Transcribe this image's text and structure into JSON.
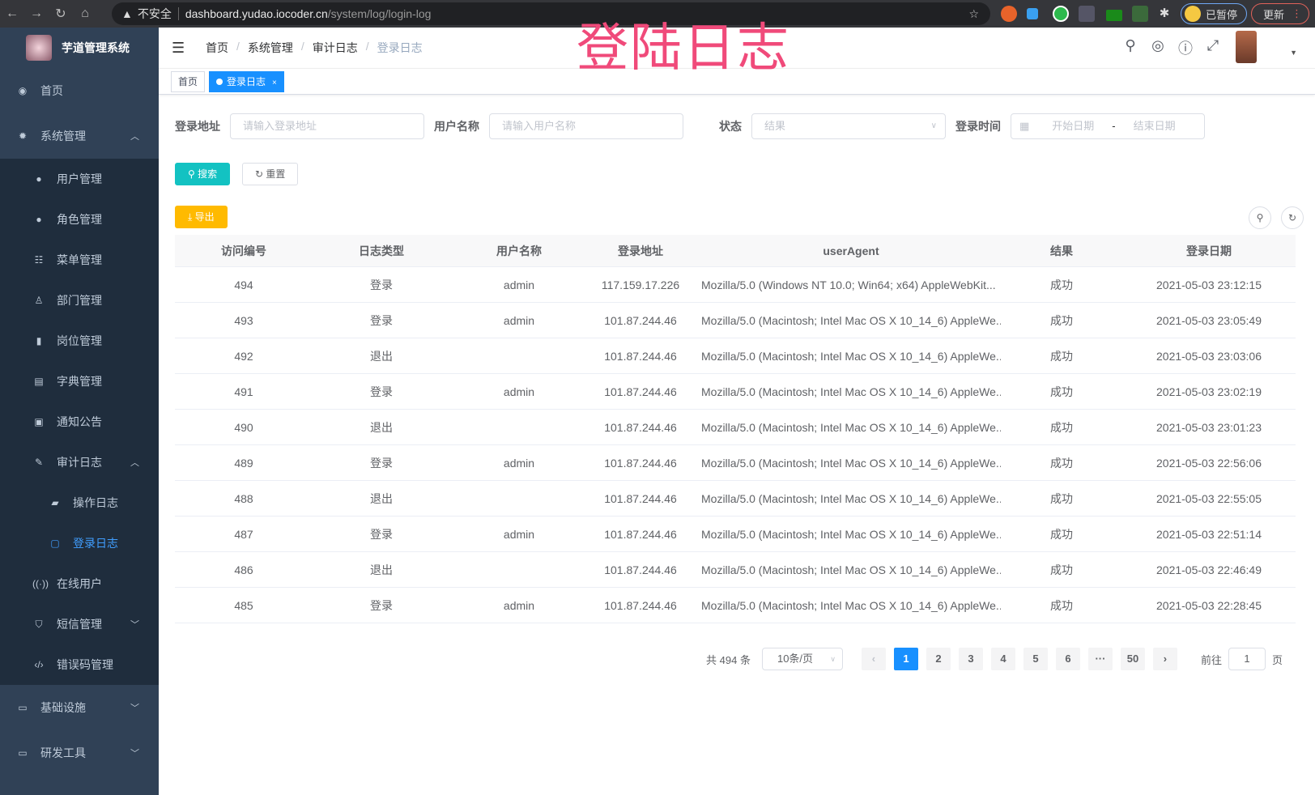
{
  "browser": {
    "security": "不安全",
    "host": "dashboard.yudao.iocoder.cn",
    "path": "/system/log/login-log",
    "profile": "已暂停",
    "update": "更新"
  },
  "overlay_title": "登陆日志",
  "sidebar": {
    "title": "芋道管理系统",
    "items": [
      {
        "label": "首页",
        "icon": "dashboard-icon"
      },
      {
        "label": "系统管理",
        "icon": "gear-icon",
        "expanded": true,
        "children": [
          {
            "label": "用户管理",
            "icon": "user-icon"
          },
          {
            "label": "角色管理",
            "icon": "peoples-icon"
          },
          {
            "label": "菜单管理",
            "icon": "tree-table-icon"
          },
          {
            "label": "部门管理",
            "icon": "tree-icon"
          },
          {
            "label": "岗位管理",
            "icon": "post-icon"
          },
          {
            "label": "字典管理",
            "icon": "dict-icon"
          },
          {
            "label": "通知公告",
            "icon": "message-icon"
          },
          {
            "label": "审计日志",
            "icon": "log-icon",
            "expanded": true,
            "children": [
              {
                "label": "操作日志",
                "icon": "form-icon"
              },
              {
                "label": "登录日志",
                "icon": "logininfor-icon",
                "active": true
              }
            ]
          },
          {
            "label": "在线用户",
            "icon": "online-icon"
          },
          {
            "label": "短信管理",
            "icon": "shield-icon",
            "collapsed": true
          },
          {
            "label": "错误码管理",
            "icon": "code-icon"
          }
        ]
      },
      {
        "label": "基础设施",
        "icon": "monitor-icon",
        "collapsed": true
      },
      {
        "label": "研发工具",
        "icon": "tool-icon",
        "collapsed": true
      }
    ]
  },
  "breadcrumb": [
    "首页",
    "系统管理",
    "审计日志",
    "登录日志"
  ],
  "tags": [
    {
      "label": "首页"
    },
    {
      "label": "登录日志",
      "active": true
    }
  ],
  "filters": {
    "address": {
      "label": "登录地址",
      "placeholder": "请输入登录地址"
    },
    "username": {
      "label": "用户名称",
      "placeholder": "请输入用户名称"
    },
    "status": {
      "label": "状态",
      "placeholder": "结果"
    },
    "time": {
      "label": "登录时间",
      "start": "开始日期",
      "sep": "-",
      "end": "结束日期"
    }
  },
  "buttons": {
    "search": "搜索",
    "reset": "重置",
    "export": "导出"
  },
  "table": {
    "columns": [
      "访问编号",
      "日志类型",
      "用户名称",
      "登录地址",
      "userAgent",
      "结果",
      "登录日期"
    ],
    "rows": [
      [
        "494",
        "登录",
        "admin",
        "117.159.17.226",
        "Mozilla/5.0 (Windows NT 10.0; Win64; x64) AppleWebKit...",
        "成功",
        "2021-05-03 23:12:15"
      ],
      [
        "493",
        "登录",
        "admin",
        "101.87.244.46",
        "Mozilla/5.0 (Macintosh; Intel Mac OS X 10_14_6) AppleWe...",
        "成功",
        "2021-05-03 23:05:49"
      ],
      [
        "492",
        "退出",
        "",
        "101.87.244.46",
        "Mozilla/5.0 (Macintosh; Intel Mac OS X 10_14_6) AppleWe...",
        "成功",
        "2021-05-03 23:03:06"
      ],
      [
        "491",
        "登录",
        "admin",
        "101.87.244.46",
        "Mozilla/5.0 (Macintosh; Intel Mac OS X 10_14_6) AppleWe...",
        "成功",
        "2021-05-03 23:02:19"
      ],
      [
        "490",
        "退出",
        "",
        "101.87.244.46",
        "Mozilla/5.0 (Macintosh; Intel Mac OS X 10_14_6) AppleWe...",
        "成功",
        "2021-05-03 23:01:23"
      ],
      [
        "489",
        "登录",
        "admin",
        "101.87.244.46",
        "Mozilla/5.0 (Macintosh; Intel Mac OS X 10_14_6) AppleWe...",
        "成功",
        "2021-05-03 22:56:06"
      ],
      [
        "488",
        "退出",
        "",
        "101.87.244.46",
        "Mozilla/5.0 (Macintosh; Intel Mac OS X 10_14_6) AppleWe...",
        "成功",
        "2021-05-03 22:55:05"
      ],
      [
        "487",
        "登录",
        "admin",
        "101.87.244.46",
        "Mozilla/5.0 (Macintosh; Intel Mac OS X 10_14_6) AppleWe...",
        "成功",
        "2021-05-03 22:51:14"
      ],
      [
        "486",
        "退出",
        "",
        "101.87.244.46",
        "Mozilla/5.0 (Macintosh; Intel Mac OS X 10_14_6) AppleWe...",
        "成功",
        "2021-05-03 22:46:49"
      ],
      [
        "485",
        "登录",
        "admin",
        "101.87.244.46",
        "Mozilla/5.0 (Macintosh; Intel Mac OS X 10_14_6) AppleWe...",
        "成功",
        "2021-05-03 22:28:45"
      ]
    ]
  },
  "pagination": {
    "total": "共 494 条",
    "page_size": "10条/页",
    "pages": [
      "1",
      "2",
      "3",
      "4",
      "5",
      "6",
      "···",
      "50"
    ],
    "current": "1",
    "goto_prefix": "前往",
    "goto_value": "1",
    "goto_suffix": "页"
  },
  "colors": {
    "sidebar": "#304156",
    "submenu": "#1f2d3d",
    "primary": "#1890ff",
    "search": "#13c2c2",
    "export": "#ffba00",
    "overlay": "#f04a7a"
  }
}
